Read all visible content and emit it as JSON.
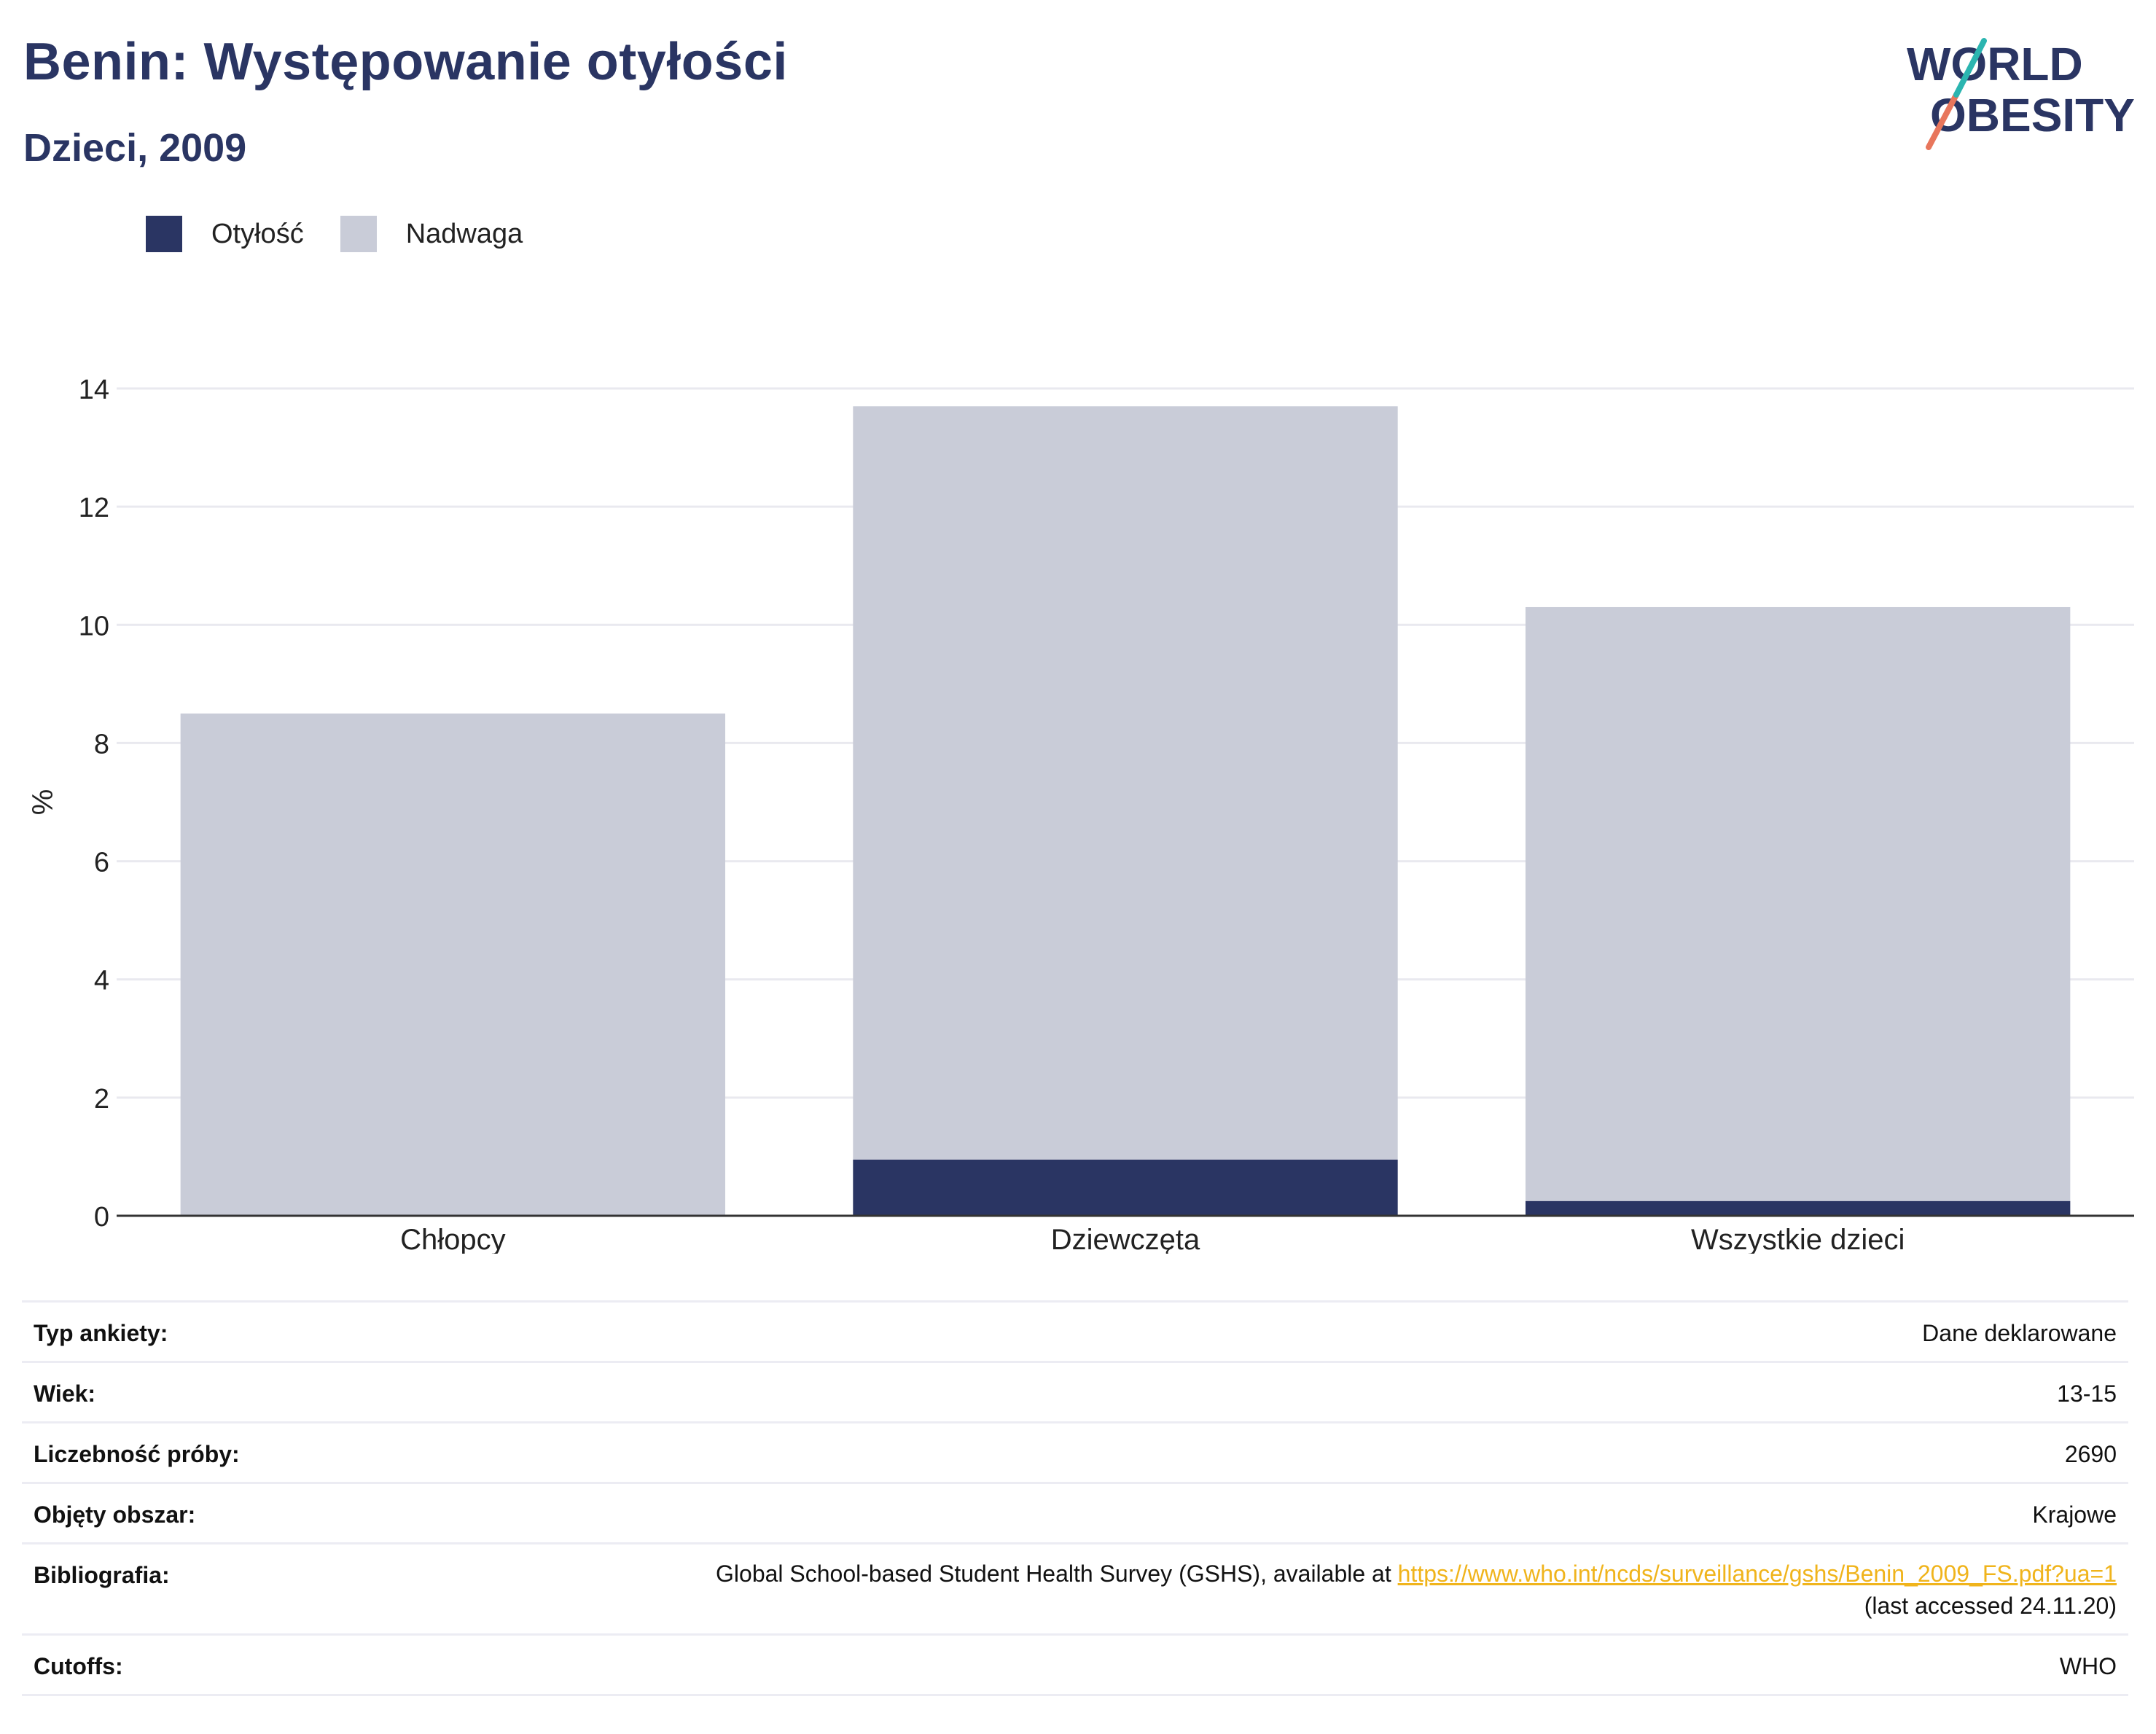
{
  "header": {
    "title": "Benin: Występowanie otyłości",
    "subtitle": "Dzieci, 2009"
  },
  "logo": {
    "line1": "WORLD",
    "line2": "OBESITY"
  },
  "legend": [
    {
      "label": "Otyłość",
      "color": "#2a3563"
    },
    {
      "label": "Nadwaga",
      "color": "#c9ccd8"
    }
  ],
  "chart_data": {
    "type": "bar",
    "stacked": true,
    "categories": [
      "Chłopcy",
      "Dziewczęta",
      "Wszystkie dzieci"
    ],
    "series": [
      {
        "name": "Otyłość",
        "values": [
          0,
          0.95,
          0.25
        ],
        "color": "#2a3563"
      },
      {
        "name": "Nadwaga",
        "values": [
          8.5,
          12.75,
          10.05
        ],
        "color": "#c9ccd8"
      }
    ],
    "ylabel": "%",
    "xlabel": "",
    "ylim": [
      0,
      14
    ],
    "yticks": [
      0,
      2,
      4,
      6,
      8,
      10,
      12,
      14
    ],
    "grid": true,
    "legend_position": "top-left"
  },
  "details": {
    "survey_type": {
      "label": "Typ ankiety:",
      "value": "Dane deklarowane"
    },
    "age": {
      "label": "Wiek:",
      "value": "13-15"
    },
    "sample_size": {
      "label": "Liczebność próby:",
      "value": "2690"
    },
    "coverage": {
      "label": "Objęty obszar:",
      "value": "Krajowe"
    },
    "bibliography": {
      "label": "Bibliografia:",
      "text": "Global School-based Student Health Survey (GSHS), available at ",
      "link": "https://www.who.int/ncds/surveillance/gshs/Benin_2009_FS.pdf?ua=1",
      "accessed": "(last accessed 24.11.20)"
    },
    "cutoffs": {
      "label": "Cutoffs:",
      "value": "WHO"
    }
  }
}
